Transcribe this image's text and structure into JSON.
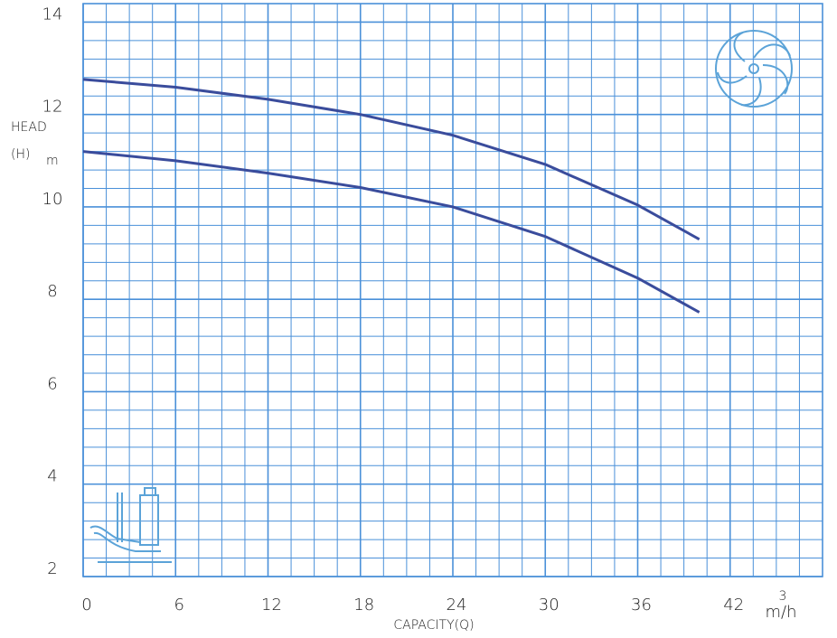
{
  "chart_data": {
    "type": "line",
    "ylabel": "HEAD",
    "ylabel_symbol": "(H)",
    "ylabel_unit": "m",
    "xlabel": "CAPACITY(Q)",
    "xunit": "m/h",
    "xunit_sup": "3",
    "x": [
      0,
      6,
      12,
      18,
      24,
      30,
      36,
      40
    ],
    "series": [
      {
        "color": "#3a4c9c",
        "values": [
          12.76,
          12.59,
          12.33,
          12.0,
          11.55,
          10.92,
          10.04,
          9.3
        ]
      },
      {
        "color": "#3a4c9c",
        "values": [
          11.2,
          11.0,
          10.73,
          10.42,
          10.0,
          9.36,
          8.46,
          7.72
        ]
      }
    ],
    "xlim": [
      0,
      48
    ],
    "xticks": [
      0,
      6,
      12,
      18,
      24,
      30,
      36,
      42
    ],
    "ylim": [
      2,
      14.4
    ],
    "yticks": [
      2,
      4,
      6,
      8,
      10,
      12,
      14
    ],
    "grid": true,
    "grid_color": "#4a90d9"
  }
}
